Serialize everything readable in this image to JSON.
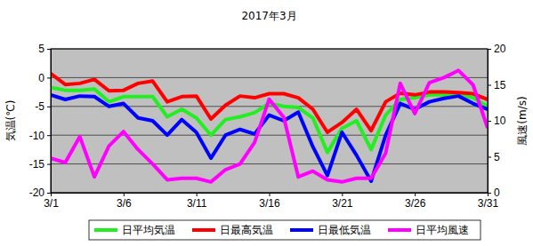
{
  "chart_data": {
    "type": "line",
    "title": "2017年3月",
    "y_label": "気温(℃)",
    "y2_label": "風速(m/s)",
    "categories": [
      "3/1",
      null,
      null,
      null,
      null,
      "3/6",
      null,
      null,
      null,
      null,
      "3/11",
      null,
      null,
      null,
      null,
      "3/16",
      null,
      null,
      null,
      null,
      "3/21",
      null,
      null,
      null,
      null,
      "3/26",
      null,
      null,
      null,
      null,
      "3/31"
    ],
    "ylim": [
      -20,
      5
    ],
    "yticks": [
      -20,
      -15,
      -10,
      -5,
      0,
      5
    ],
    "y2lim": [
      0,
      20
    ],
    "y2ticks": [
      0,
      5,
      10,
      15,
      20
    ],
    "grid": true,
    "legend": "bottom",
    "series": [
      {
        "name": "日平均気温",
        "color": "#22ee22",
        "axis": "y",
        "values": [
          -1.7,
          -2.2,
          -2.2,
          -2,
          -4.2,
          -3.3,
          -3.3,
          -3.3,
          -6.8,
          -5.5,
          -7,
          -10,
          -7.3,
          -6.8,
          -6.1,
          -4.5,
          -5,
          -5.2,
          -7,
          -13,
          -8.8,
          -7.5,
          -12.5,
          -6.5,
          -3.8,
          -3.5,
          -3,
          -3,
          -3,
          -3.5,
          -5
        ]
      },
      {
        "name": "日最高気温",
        "color": "#ff0000",
        "axis": "y",
        "values": [
          0.7,
          -1.2,
          -1,
          -0.3,
          -2.3,
          -2.2,
          -1,
          -0.6,
          -4.2,
          -3.3,
          -3.2,
          -7.2,
          -4.8,
          -3.2,
          -3.5,
          -2.8,
          -2.8,
          -3.5,
          -5.5,
          -9.5,
          -7.8,
          -5.5,
          -9.2,
          -4.2,
          -2.7,
          -3,
          -2.5,
          -2.5,
          -2.6,
          -2.8,
          -3.8
        ]
      },
      {
        "name": "日最低気温",
        "color": "#0000ff",
        "axis": "y",
        "values": [
          -3,
          -3.8,
          -3.2,
          -3.3,
          -5,
          -4.5,
          -7,
          -7.5,
          -10,
          -7.3,
          -9.5,
          -14,
          -10,
          -9,
          -9.8,
          -6.5,
          -7.5,
          -6,
          -12,
          -17,
          -9.5,
          -13.5,
          -18,
          -10,
          -4.5,
          -5.5,
          -4.2,
          -3.6,
          -3.2,
          -4.5,
          -5.5
        ]
      },
      {
        "name": "日平均風速",
        "color": "#ff00ff",
        "axis": "y2",
        "values": [
          4.8,
          4.2,
          7.8,
          2.2,
          6.5,
          8.5,
          6,
          4,
          1.8,
          2,
          2,
          1.5,
          3.2,
          4,
          7,
          13,
          10.5,
          2.2,
          3,
          1.8,
          1.5,
          2,
          2,
          5.5,
          15.2,
          11,
          15.3,
          16,
          17,
          15,
          9
        ]
      }
    ]
  }
}
